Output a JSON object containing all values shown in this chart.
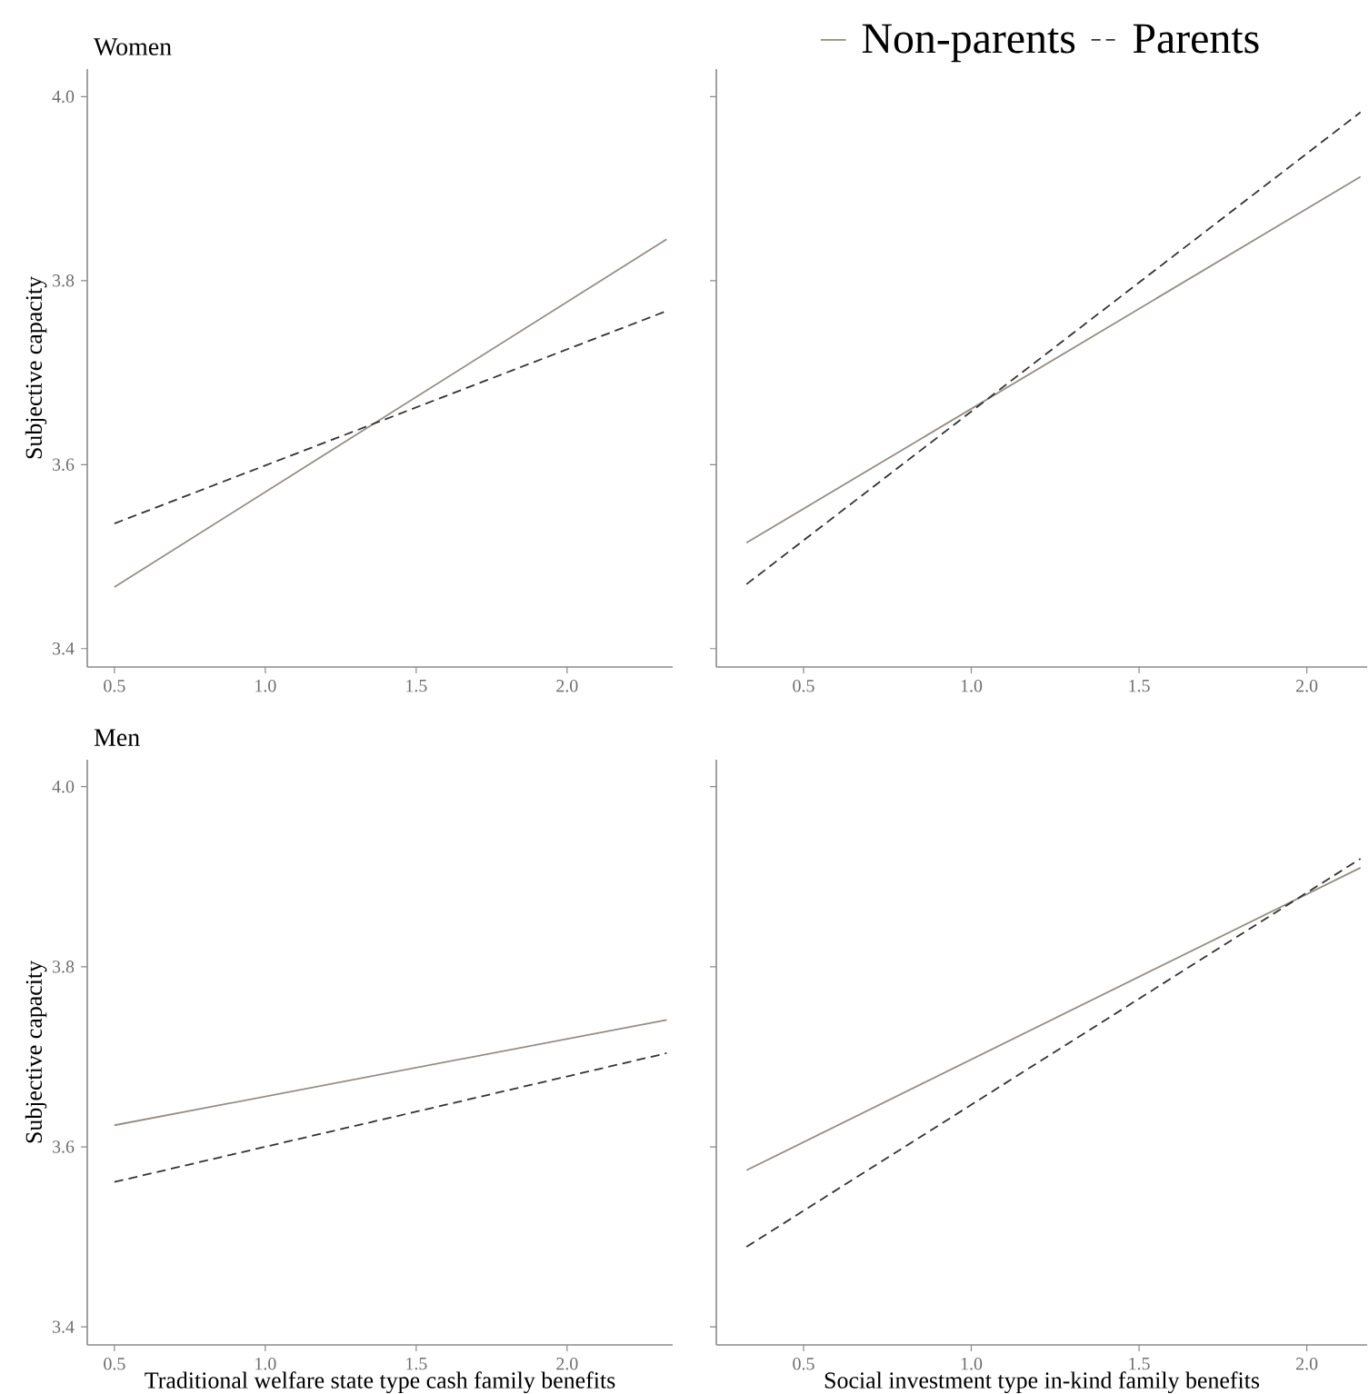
{
  "chart_data": [
    {
      "type": "line",
      "title": "Women",
      "ylabel": "Subjective capacity",
      "x": [
        0.5,
        2.33
      ],
      "xlim": [
        0.41,
        2.35
      ],
      "ylim": [
        3.38,
        4.03
      ],
      "xticks": [
        {
          "value": 0.5,
          "label": "0.5"
        },
        {
          "value": 1,
          "label": "1.0"
        },
        {
          "value": 1.5,
          "label": "1.5"
        },
        {
          "value": 2,
          "label": "2.0"
        }
      ],
      "yticks": [
        3.4,
        3.6,
        3.8,
        {
          "value": 4,
          "label": "4.0"
        }
      ],
      "series": [
        {
          "color": "#958d85",
          "line_style": "solid",
          "values": [
            3.467,
            3.845
          ]
        },
        {
          "color": "#333333",
          "line_style": "dashed",
          "values": [
            3.536,
            3.767
          ]
        }
      ]
    },
    {
      "type": "line",
      "legend": "top",
      "tick_labels": "x",
      "x": [
        0.33,
        2.16
      ],
      "xlim": [
        0.24,
        2.18
      ],
      "ylim": [
        3.38,
        4.03
      ],
      "xticks": [
        {
          "value": 0.5,
          "label": "0.5"
        },
        {
          "value": 1,
          "label": "1.0"
        },
        {
          "value": 1.5,
          "label": "1.5"
        },
        {
          "value": 2,
          "label": "2.0"
        }
      ],
      "yticks": [
        3.4,
        3.6,
        3.8,
        4
      ],
      "series": [
        {
          "name": "Non-parents",
          "color": "#958d85",
          "line_style": "solid",
          "values": [
            3.515,
            3.913
          ]
        },
        {
          "name": "Parents",
          "color": "#333333",
          "line_style": "dashed",
          "values": [
            3.47,
            3.983
          ]
        }
      ]
    },
    {
      "type": "line",
      "title": "Men",
      "ylabel": "Subjective capacity",
      "xlabel": "Traditional welfare state type cash family benefits",
      "x": [
        0.5,
        2.33
      ],
      "xlim": [
        0.41,
        2.35
      ],
      "ylim": [
        3.38,
        4.03
      ],
      "xticks": [
        {
          "value": 0.5,
          "label": "0.5"
        },
        {
          "value": 1,
          "label": "1.0"
        },
        {
          "value": 1.5,
          "label": "1.5"
        },
        {
          "value": 2,
          "label": "2.0"
        }
      ],
      "yticks": [
        3.4,
        3.6,
        3.8,
        {
          "value": 4,
          "label": "4.0"
        }
      ],
      "series": [
        {
          "color": "#958d85",
          "line_style": "solid",
          "values": [
            3.624,
            3.741
          ]
        },
        {
          "color": "#333333",
          "line_style": "dashed",
          "values": [
            3.561,
            3.704
          ]
        }
      ]
    },
    {
      "type": "line",
      "tick_labels": "x",
      "xlabel": "Social investment type in-kind family benefits",
      "x": [
        0.33,
        2.16
      ],
      "xlim": [
        0.24,
        2.18
      ],
      "ylim": [
        3.38,
        4.03
      ],
      "xticks": [
        {
          "value": 0.5,
          "label": "0.5"
        },
        {
          "value": 1,
          "label": "1.0"
        },
        {
          "value": 1.5,
          "label": "1.5"
        },
        {
          "value": 2,
          "label": "2.0"
        }
      ],
      "yticks": [
        3.4,
        3.6,
        3.8,
        4
      ],
      "series": [
        {
          "color": "#958d85",
          "line_style": "solid",
          "values": [
            3.574,
            3.91
          ]
        },
        {
          "color": "#333333",
          "line_style": "dashed",
          "values": [
            3.489,
            3.92
          ]
        }
      ]
    }
  ]
}
